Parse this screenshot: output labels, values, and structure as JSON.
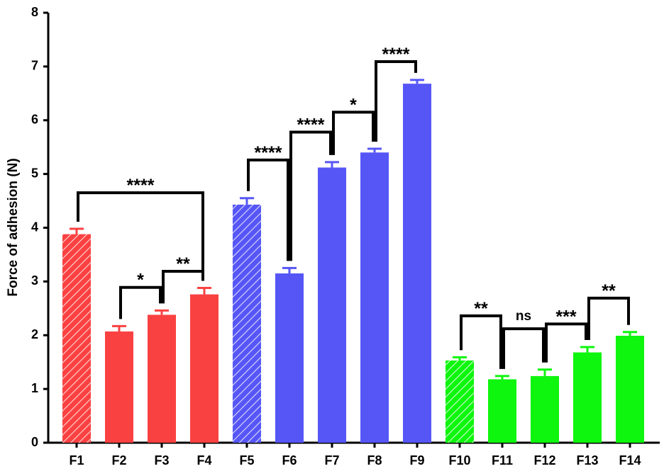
{
  "chart_data": {
    "type": "bar",
    "y_label": "Force of adhesion (N)",
    "categories": [
      "F1",
      "F2",
      "F3",
      "F4",
      "F5",
      "F6",
      "F7",
      "F8",
      "F9",
      "F10",
      "F11",
      "F12",
      "F13",
      "F14"
    ],
    "values": [
      3.88,
      2.07,
      2.38,
      2.76,
      4.43,
      3.15,
      5.12,
      5.4,
      6.68,
      1.53,
      1.18,
      1.24,
      1.68,
      1.99
    ],
    "errors": [
      0.1,
      0.1,
      0.08,
      0.12,
      0.12,
      0.1,
      0.1,
      0.07,
      0.07,
      0.06,
      0.06,
      0.12,
      0.1,
      0.07
    ],
    "colors": [
      "#fa4141",
      "#fa4141",
      "#fa4141",
      "#fa4141",
      "#5656f7",
      "#5656f7",
      "#5656f7",
      "#5656f7",
      "#5656f7",
      "#0ef50e",
      "#0ef50e",
      "#0ef50e",
      "#0ef50e",
      "#0ef50e"
    ],
    "hatched": [
      "F1",
      "F5",
      "F10"
    ],
    "ylim": [
      0,
      8
    ],
    "yticks": [
      0,
      1,
      2,
      3,
      4,
      5,
      6,
      7,
      8
    ],
    "brackets": [
      {
        "from": "F1",
        "to": "F4",
        "label": "****",
        "y": 4.65
      },
      {
        "from": "F2",
        "to": "F3",
        "label": "*",
        "y": 2.89
      },
      {
        "from": "F3",
        "to": "F4",
        "label": "**",
        "y": 3.19
      },
      {
        "from": "F5",
        "to": "F6",
        "label": "****",
        "y": 5.26
      },
      {
        "from": "F6",
        "to": "F7",
        "label": "****",
        "y": 5.78
      },
      {
        "from": "F7",
        "to": "F8",
        "label": "*",
        "y": 6.15
      },
      {
        "from": "F8",
        "to": "F9",
        "label": "****",
        "y": 7.09
      },
      {
        "from": "F10",
        "to": "F11",
        "label": "**",
        "y": 2.36
      },
      {
        "from": "F11",
        "to": "F12",
        "label": "ns",
        "y": 2.12
      },
      {
        "from": "F12",
        "to": "F13",
        "label": "***",
        "y": 2.21
      },
      {
        "from": "F13",
        "to": "F14",
        "label": "**",
        "y": 2.69
      }
    ]
  }
}
